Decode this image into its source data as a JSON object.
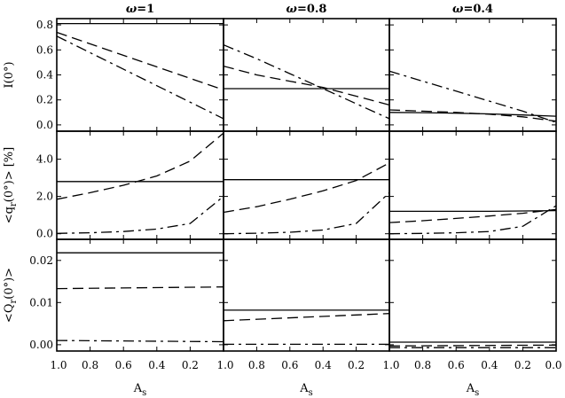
{
  "chart_data": {
    "type": "line",
    "layout": "3 rows x 3 columns small multiples",
    "columns": [
      {
        "title": "ω=1",
        "title_symbol": "ω",
        "title_value": "=1"
      },
      {
        "title": "ω=0.8",
        "title_symbol": "ω",
        "title_value": "=0.8"
      },
      {
        "title": "ω=0.4",
        "title_symbol": "ω",
        "title_value": "=0.4"
      }
    ],
    "x_axis": {
      "label": "As",
      "label_main": "A",
      "label_sub": "s",
      "xlim": [
        1.0,
        0.0
      ],
      "reversed": true,
      "tick_values": [
        1.0,
        0.8,
        0.6,
        0.4,
        0.2,
        0.0
      ],
      "tick_labels_per_column": [
        [
          "1.0",
          "0.8",
          "0.6",
          "0.4",
          "0.2",
          ""
        ],
        [
          "1.0",
          "0.8",
          "0.6",
          "0.4",
          "0.2",
          ""
        ],
        [
          "1.0",
          "0.8",
          "0.6",
          "0.4",
          "0.2",
          "0.0"
        ]
      ],
      "bottom_labels": [
        "1.0",
        "1.0",
        "1.0"
      ]
    },
    "line_styles": [
      "solid",
      "dashed",
      "dashdot"
    ],
    "rows": [
      {
        "ylabel": "I(0°)",
        "ylabel_parts": {
          "main": "I(0°)"
        },
        "ylim": [
          -0.05,
          0.85
        ],
        "ticks": [
          0.0,
          0.2,
          0.4,
          0.6,
          0.8
        ],
        "tick_labels": [
          "0.0",
          "0.2",
          "0.4",
          "0.6",
          "0.8"
        ],
        "panels": [
          {
            "x": [
              1.0,
              0.0
            ],
            "solid": [
              0.81,
              0.81
            ],
            "dashed": [
              0.74,
              0.28
            ],
            "dashdot": [
              0.71,
              0.05
            ]
          },
          {
            "x": [
              1.0,
              0.8,
              0.6,
              0.4,
              0.2,
              0.0
            ],
            "solid": [
              0.29,
              0.29,
              0.29,
              0.29,
              0.29,
              0.29
            ],
            "dashed": [
              0.47,
              0.4,
              0.35,
              0.3,
              0.23,
              0.16
            ],
            "dashdot": [
              0.64,
              0.53,
              0.41,
              0.29,
              0.17,
              0.05
            ]
          },
          {
            "x": [
              1.0,
              0.8,
              0.6,
              0.4,
              0.2,
              0.0
            ],
            "solid": [
              0.1,
              0.098,
              0.094,
              0.088,
              0.08,
              0.07
            ],
            "dashed": [
              0.12,
              0.11,
              0.1,
              0.085,
              0.065,
              0.03
            ],
            "dashdot": [
              0.43,
              0.35,
              0.27,
              0.19,
              0.11,
              0.02
            ]
          }
        ]
      },
      {
        "ylabel": "<qr(0°)> [%]",
        "ylabel_parts": {
          "pre": "<q",
          "sub": "r",
          "post": "(0°)> [%]"
        },
        "ylim": [
          -0.3,
          5.5
        ],
        "ticks": [
          0.0,
          2.0,
          4.0
        ],
        "tick_labels": [
          "0.0",
          "2.0",
          "4.0"
        ],
        "panels": [
          {
            "x": [
              1.0,
              0.8,
              0.6,
              0.4,
              0.2,
              0.0
            ],
            "solid": [
              2.8,
              2.8,
              2.8,
              2.8,
              2.8,
              2.8
            ],
            "dashed": [
              1.85,
              2.2,
              2.6,
              3.1,
              3.9,
              5.4
            ],
            "dashdot": [
              0.02,
              0.05,
              0.12,
              0.25,
              0.55,
              2.0
            ]
          },
          {
            "x": [
              1.0,
              0.8,
              0.6,
              0.4,
              0.2,
              0.0
            ],
            "solid": [
              2.9,
              2.9,
              2.9,
              2.9,
              2.9,
              2.9
            ],
            "dashed": [
              1.15,
              1.45,
              1.85,
              2.3,
              2.85,
              3.8
            ],
            "dashdot": [
              0.0,
              0.03,
              0.08,
              0.2,
              0.55,
              2.2
            ]
          },
          {
            "x": [
              1.0,
              0.8,
              0.6,
              0.4,
              0.2,
              0.0
            ],
            "solid": [
              1.2,
              1.2,
              1.2,
              1.2,
              1.22,
              1.24
            ],
            "dashed": [
              0.6,
              0.7,
              0.82,
              0.95,
              1.1,
              1.3
            ],
            "dashdot": [
              0.0,
              0.02,
              0.05,
              0.12,
              0.4,
              1.5
            ]
          }
        ]
      },
      {
        "ylabel": "<Qr(0°)>",
        "ylabel_parts": {
          "pre": "<Q",
          "sub": "r",
          "post": "(0°)>"
        },
        "ylim": [
          -0.0015,
          0.025
        ],
        "ticks": [
          0.0,
          0.01,
          0.02
        ],
        "tick_labels": [
          "0.00",
          "0.01",
          "0.02"
        ],
        "panels": [
          {
            "x": [
              1.0,
              0.0
            ],
            "solid": [
              0.0218,
              0.0218
            ],
            "dashed": [
              0.0133,
              0.0137
            ],
            "dashdot": [
              0.001,
              0.0007
            ]
          },
          {
            "x": [
              1.0,
              0.0
            ],
            "solid": [
              0.0082,
              0.0082
            ],
            "dashed": [
              0.0057,
              0.0074
            ],
            "dashdot": [
              0.0001,
              0.0001
            ]
          },
          {
            "x": [
              1.0,
              0.0
            ],
            "solid": [
              0.0006,
              0.0006
            ],
            "dashed": [
              -0.0003,
              -0.0001
            ],
            "dashdot": [
              -0.0007,
              -0.0007
            ]
          }
        ]
      }
    ],
    "grid": false,
    "legend": "none",
    "colors": {
      "line": "#000000",
      "background": "#ffffff"
    }
  }
}
